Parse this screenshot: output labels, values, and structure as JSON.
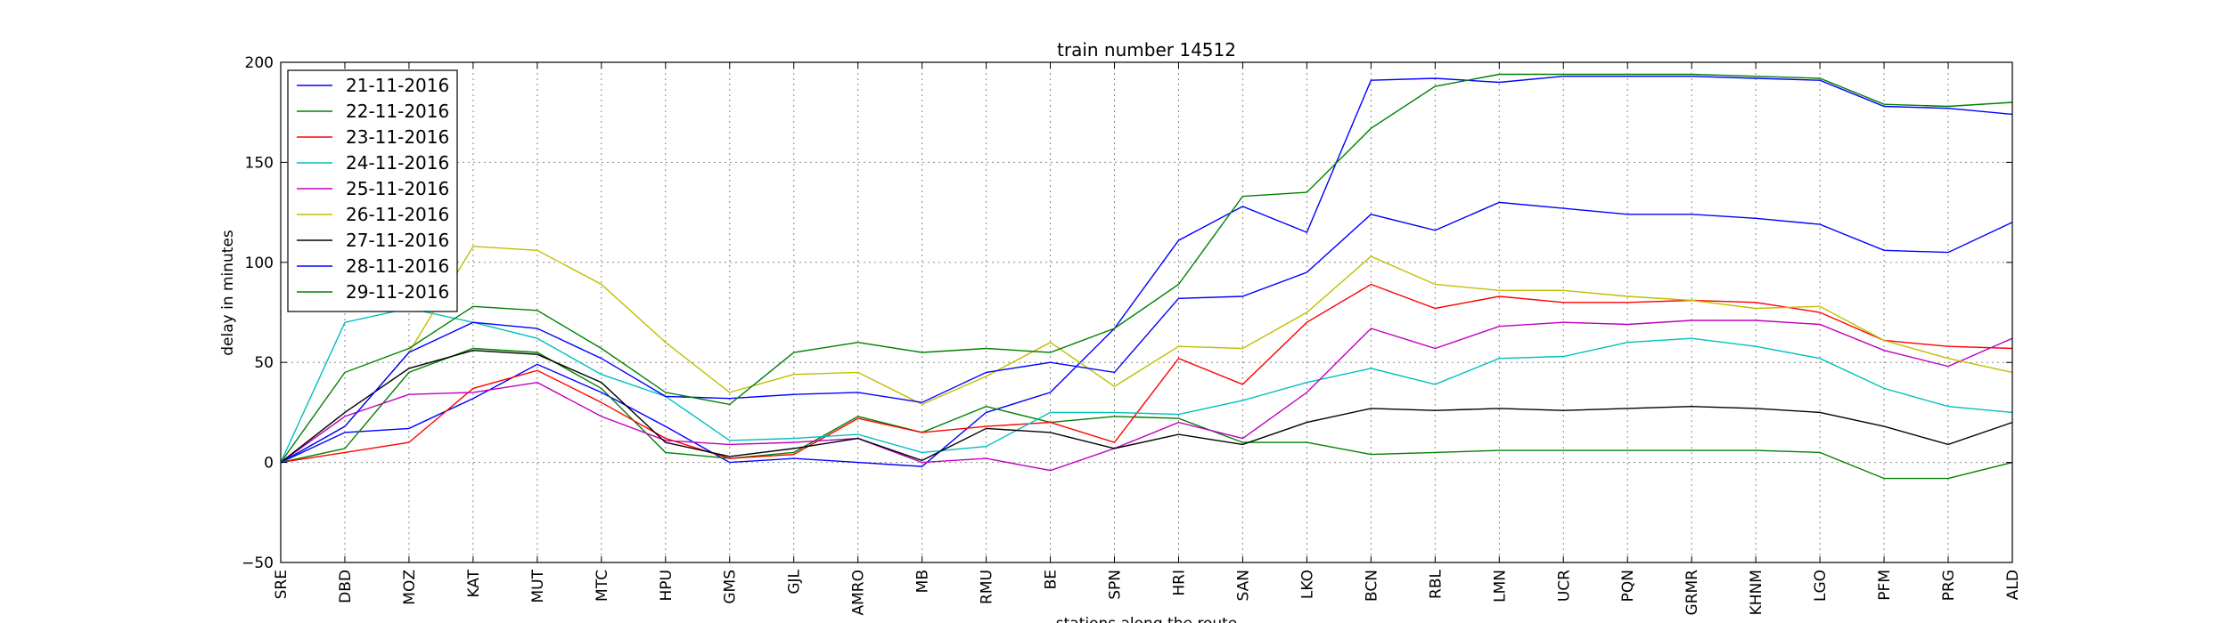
{
  "chart_data": {
    "type": "line",
    "title": "train number 14512",
    "xlabel": "stations along the route",
    "ylabel": "delay in minutes",
    "ylim": [
      -50,
      200
    ],
    "yticks": [
      "200",
      "150",
      "100",
      "50",
      "0",
      "−50"
    ],
    "ytick_values": [
      200,
      150,
      100,
      50,
      0,
      -50
    ],
    "grid": true,
    "legend_position": "top-left",
    "categories": [
      "SRE",
      "DBD",
      "MOZ",
      "KAT",
      "MUT",
      "MTC",
      "HPU",
      "GMS",
      "GJL",
      "AMRO",
      "MB",
      "RMU",
      "BE",
      "SPN",
      "HRI",
      "SAN",
      "LKO",
      "BCN",
      "RBL",
      "LMN",
      "UCR",
      "PQN",
      "GRMR",
      "KHNM",
      "LGO",
      "PFM",
      "PRG",
      "ALD"
    ],
    "series": [
      {
        "name": "21-11-2016",
        "color": "#0000ff",
        "values": [
          0,
          15,
          17,
          32,
          49,
          35,
          18,
          0,
          2,
          0,
          -2,
          25,
          35,
          67,
          111,
          128,
          115,
          191,
          192,
          190,
          193,
          193,
          193,
          192,
          191,
          178,
          177,
          174
        ]
      },
      {
        "name": "22-11-2016",
        "color": "#008000",
        "values": [
          0,
          7,
          45,
          57,
          55,
          37,
          5,
          2,
          5,
          23,
          15,
          28,
          20,
          23,
          22,
          10,
          10,
          4,
          5,
          6,
          6,
          6,
          6,
          6,
          5,
          -8,
          -8,
          0
        ]
      },
      {
        "name": "23-11-2016",
        "color": "#ff0000",
        "values": [
          0,
          5,
          10,
          37,
          46,
          30,
          12,
          2,
          4,
          22,
          15,
          18,
          20,
          10,
          52,
          39,
          70,
          89,
          77,
          83,
          80,
          80,
          81,
          80,
          75,
          61,
          58,
          57
        ]
      },
      {
        "name": "24-11-2016",
        "color": "#00bfbf",
        "values": [
          0,
          70,
          77,
          70,
          62,
          44,
          33,
          11,
          12,
          14,
          5,
          8,
          25,
          25,
          24,
          31,
          40,
          47,
          39,
          52,
          53,
          60,
          62,
          58,
          52,
          37,
          28,
          25
        ]
      },
      {
        "name": "25-11-2016",
        "color": "#bf00bf",
        "values": [
          0,
          23,
          34,
          35,
          40,
          23,
          11,
          9,
          10,
          12,
          0,
          2,
          -4,
          7,
          20,
          12,
          35,
          67,
          57,
          68,
          70,
          69,
          71,
          71,
          69,
          56,
          48,
          62
        ]
      },
      {
        "name": "26-11-2016",
        "color": "#bfbf00",
        "values": [
          0,
          18,
          55,
          108,
          106,
          89,
          60,
          35,
          44,
          45,
          29,
          43,
          60,
          38,
          58,
          57,
          75,
          103,
          89,
          86,
          86,
          83,
          81,
          77,
          78,
          61,
          52,
          45
        ]
      },
      {
        "name": "27-11-2016",
        "color": "#000000",
        "values": [
          0,
          25,
          47,
          56,
          54,
          40,
          10,
          3,
          7,
          12,
          1,
          17,
          15,
          7,
          14,
          9,
          20,
          27,
          26,
          27,
          26,
          27,
          28,
          27,
          25,
          18,
          9,
          20
        ]
      },
      {
        "name": "28-11-2016",
        "color": "#0000ff",
        "values": [
          0,
          18,
          55,
          70,
          67,
          52,
          33,
          32,
          34,
          35,
          30,
          45,
          50,
          45,
          82,
          83,
          95,
          124,
          116,
          130,
          127,
          124,
          124,
          122,
          119,
          106,
          105,
          120
        ]
      },
      {
        "name": "29-11-2016",
        "color": "#008000",
        "values": [
          0,
          45,
          57,
          78,
          76,
          57,
          35,
          29,
          55,
          60,
          55,
          57,
          55,
          67,
          89,
          133,
          135,
          167,
          188,
          194,
          194,
          194,
          194,
          193,
          192,
          179,
          178,
          180
        ]
      }
    ]
  }
}
